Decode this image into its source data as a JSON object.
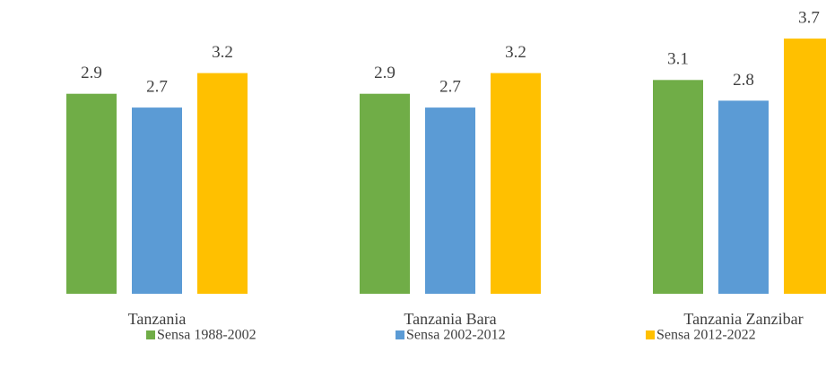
{
  "chart_data": {
    "type": "bar",
    "categories": [
      "Tanzania",
      "Tanzania Bara",
      "Tanzania Zanzibar"
    ],
    "series": [
      {
        "name": "Sensa 1988-2002",
        "color": "#70ad47",
        "values": [
          2.9,
          2.9,
          3.1
        ]
      },
      {
        "name": "Sensa 2002-2012",
        "color": "#5b9bd5",
        "values": [
          2.7,
          2.7,
          2.8
        ]
      },
      {
        "name": "Sensa 2012-2022",
        "color": "#ffc000",
        "values": [
          3.2,
          3.2,
          3.7
        ]
      }
    ],
    "ylim": [
      0,
      4
    ]
  }
}
